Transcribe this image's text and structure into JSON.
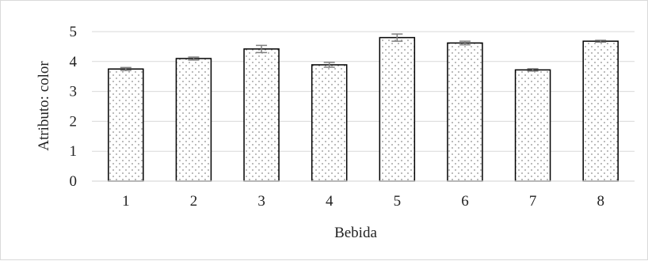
{
  "chart_data": {
    "type": "bar",
    "xlabel": "Bebida",
    "ylabel": "Atributo: color",
    "categories": [
      "1",
      "2",
      "3",
      "4",
      "5",
      "6",
      "7",
      "8"
    ],
    "values": [
      3.75,
      4.1,
      4.42,
      3.89,
      4.8,
      4.62,
      3.72,
      4.68
    ],
    "error": [
      0.05,
      0.05,
      0.12,
      0.08,
      0.12,
      0.06,
      0.04,
      0.03
    ],
    "ylim": [
      0,
      5
    ],
    "yticks": [
      "0",
      "1",
      "2",
      "3",
      "4",
      "5"
    ],
    "grid": true,
    "legend": "none",
    "bar_fill": "dotted gray pattern",
    "colors": {
      "bar_outline": "#000000",
      "dots": "#8c8c8c",
      "gridline": "#d9d9d9",
      "error_bar": "#7f7f7f",
      "text": "#222222"
    }
  }
}
